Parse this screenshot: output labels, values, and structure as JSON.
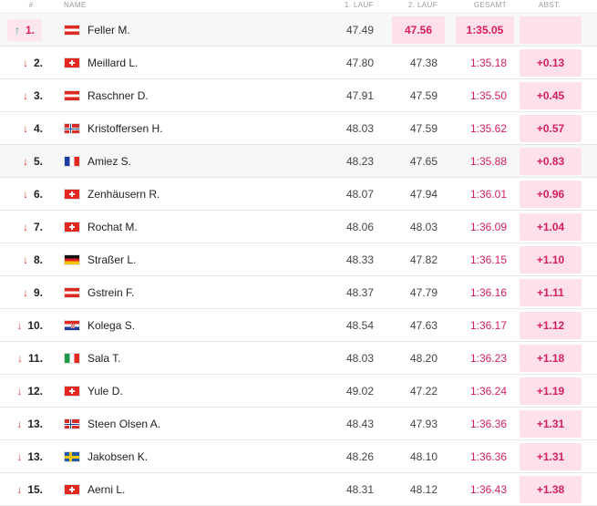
{
  "header": {
    "pos": "#",
    "name": "NAME",
    "run1": "1. LAUF",
    "run2": "2. LAUF",
    "total": "GESAMT",
    "gap": "ABST."
  },
  "rows": [
    {
      "rank": "1.",
      "trend": "up",
      "flag": "aut",
      "name": "Feller M.",
      "run1": "47.49",
      "run2": "47.56",
      "total": "1:35.05",
      "gap": ""
    },
    {
      "rank": "2.",
      "trend": "down",
      "flag": "sui",
      "name": "Meillard L.",
      "run1": "47.80",
      "run2": "47.38",
      "total": "1:35.18",
      "gap": "+0.13"
    },
    {
      "rank": "3.",
      "trend": "down",
      "flag": "aut",
      "name": "Raschner D.",
      "run1": "47.91",
      "run2": "47.59",
      "total": "1:35.50",
      "gap": "+0.45"
    },
    {
      "rank": "4.",
      "trend": "down",
      "flag": "nor",
      "name": "Kristoffersen H.",
      "run1": "48.03",
      "run2": "47.59",
      "total": "1:35.62",
      "gap": "+0.57"
    },
    {
      "rank": "5.",
      "trend": "down",
      "flag": "fra",
      "name": "Amiez S.",
      "run1": "48.23",
      "run2": "47.65",
      "total": "1:35.88",
      "gap": "+0.83"
    },
    {
      "rank": "6.",
      "trend": "down",
      "flag": "sui",
      "name": "Zenhäusern R.",
      "run1": "48.07",
      "run2": "47.94",
      "total": "1:36.01",
      "gap": "+0.96"
    },
    {
      "rank": "7.",
      "trend": "down",
      "flag": "sui",
      "name": "Rochat M.",
      "run1": "48.06",
      "run2": "48.03",
      "total": "1:36.09",
      "gap": "+1.04"
    },
    {
      "rank": "8.",
      "trend": "down",
      "flag": "ger",
      "name": "Straßer L.",
      "run1": "48.33",
      "run2": "47.82",
      "total": "1:36.15",
      "gap": "+1.10"
    },
    {
      "rank": "9.",
      "trend": "down",
      "flag": "aut",
      "name": "Gstrein F.",
      "run1": "48.37",
      "run2": "47.79",
      "total": "1:36.16",
      "gap": "+1.11"
    },
    {
      "rank": "10.",
      "trend": "down",
      "flag": "cro",
      "name": "Kolega S.",
      "run1": "48.54",
      "run2": "47.63",
      "total": "1:36.17",
      "gap": "+1.12"
    },
    {
      "rank": "11.",
      "trend": "down",
      "flag": "ita",
      "name": "Sala T.",
      "run1": "48.03",
      "run2": "48.20",
      "total": "1:36.23",
      "gap": "+1.18"
    },
    {
      "rank": "12.",
      "trend": "down",
      "flag": "sui",
      "name": "Yule D.",
      "run1": "49.02",
      "run2": "47.22",
      "total": "1:36.24",
      "gap": "+1.19"
    },
    {
      "rank": "13.",
      "trend": "down",
      "flag": "nor",
      "name": "Steen Olsen A.",
      "run1": "48.43",
      "run2": "47.93",
      "total": "1:36.36",
      "gap": "+1.31"
    },
    {
      "rank": "13.",
      "trend": "down",
      "flag": "swe",
      "name": "Jakobsen K.",
      "run1": "48.26",
      "run2": "48.10",
      "total": "1:36.36",
      "gap": "+1.31"
    },
    {
      "rank": "15.",
      "trend": "down",
      "flag": "sui",
      "name": "Aerni L.",
      "run1": "48.31",
      "run2": "48.12",
      "total": "1:36.43",
      "gap": "+1.38"
    }
  ],
  "colors": {
    "accent": "#d6205c",
    "highlight": "#fde0ea",
    "down": "#d83a3a",
    "up": "#33aa55"
  }
}
